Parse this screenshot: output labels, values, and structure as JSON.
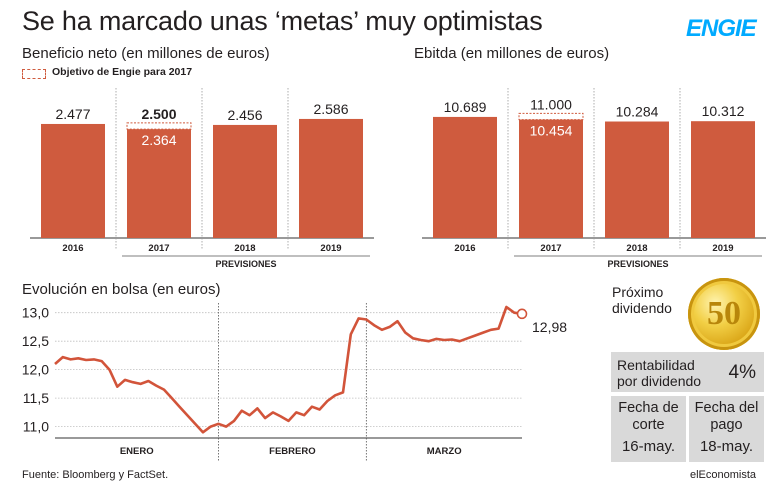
{
  "header": {
    "title": "Se ha marcado unas ‘metas’ muy optimistas",
    "brand": "ENGIE"
  },
  "colors": {
    "bar": "#cf5b3e",
    "line": "#d2543a",
    "panel": "#d9d9d9",
    "grid": "#bfbfbf",
    "brand": "#00aaff"
  },
  "footer": {
    "source": "Fuente: Bloomberg y FactSet.",
    "credit": "elEconomista"
  },
  "chart_data": [
    {
      "type": "bar",
      "title": "Beneficio neto (en millones de euros)",
      "categories": [
        "2016",
        "2017",
        "2018",
        "2019"
      ],
      "values": [
        2477,
        2364,
        2456,
        2586
      ],
      "labels": [
        "2.477",
        "2.364",
        "2.456",
        "2.586"
      ],
      "target": {
        "category": "2017",
        "value": 2500,
        "label": "2.500",
        "legend": "Objetivo de Engie para 2017"
      },
      "group_label": "PREVISIONES",
      "ylim": [
        0,
        2650
      ]
    },
    {
      "type": "bar",
      "title": "Ebitda (en millones de euros)",
      "categories": [
        "2016",
        "2017",
        "2018",
        "2019"
      ],
      "values": [
        10689,
        10454,
        10284,
        10312
      ],
      "labels": [
        "10.689",
        "10.454",
        "10.284",
        "10.312"
      ],
      "target": {
        "category": "2017",
        "value": 11000,
        "label": "11.000"
      },
      "group_label": "PREVISIONES",
      "ylim": [
        0,
        11300
      ]
    },
    {
      "type": "line",
      "title": "Evolución en bolsa (en euros)",
      "ylim": [
        10.8,
        13.1
      ],
      "yticks": [
        11.0,
        11.5,
        12.0,
        12.5,
        13.0
      ],
      "ytick_labels": [
        "11,0",
        "11,5",
        "12,0",
        "12,5",
        "13,0"
      ],
      "xlim": [
        1,
        61
      ],
      "months": [
        {
          "label": "ENERO",
          "start": 1,
          "end": 22
        },
        {
          "label": "FEBRERO",
          "start": 22,
          "end": 41
        },
        {
          "label": "MARZO",
          "start": 41,
          "end": 61
        }
      ],
      "x": [
        1,
        2,
        3,
        4,
        5,
        6,
        7,
        8,
        9,
        10,
        11,
        12,
        13,
        14,
        15,
        16,
        17,
        18,
        19,
        20,
        21,
        22,
        23,
        24,
        25,
        26,
        27,
        28,
        29,
        30,
        31,
        32,
        33,
        34,
        35,
        36,
        37,
        38,
        39,
        40,
        41,
        42,
        43,
        44,
        45,
        46,
        47,
        48,
        49,
        50,
        51,
        52,
        53,
        54,
        55,
        56,
        57,
        58,
        59,
        60,
        61
      ],
      "y": [
        12.1,
        12.22,
        12.18,
        12.2,
        12.17,
        12.18,
        12.15,
        12.0,
        11.7,
        11.82,
        11.78,
        11.75,
        11.8,
        11.72,
        11.65,
        11.5,
        11.35,
        11.2,
        11.05,
        10.9,
        11.0,
        11.05,
        11.0,
        11.1,
        11.28,
        11.2,
        11.32,
        11.15,
        11.25,
        11.18,
        11.1,
        11.25,
        11.2,
        11.35,
        11.3,
        11.45,
        11.55,
        11.6,
        12.62,
        12.9,
        12.88,
        12.78,
        12.7,
        12.75,
        12.85,
        12.65,
        12.55,
        12.52,
        12.5,
        12.54,
        12.52,
        12.53,
        12.5,
        12.55,
        12.6,
        12.65,
        12.7,
        12.72,
        13.1,
        13.0,
        12.98
      ],
      "last_label": "12,98"
    }
  ],
  "dividend": {
    "title": "Próximo dividendo",
    "coin": "50",
    "yield_label": "Rentabilidad por dividendo",
    "yield_value": "4%",
    "cut_label": "Fecha de corte",
    "cut_value": "16-may.",
    "pay_label": "Fecha del pago",
    "pay_value": "18-may."
  }
}
